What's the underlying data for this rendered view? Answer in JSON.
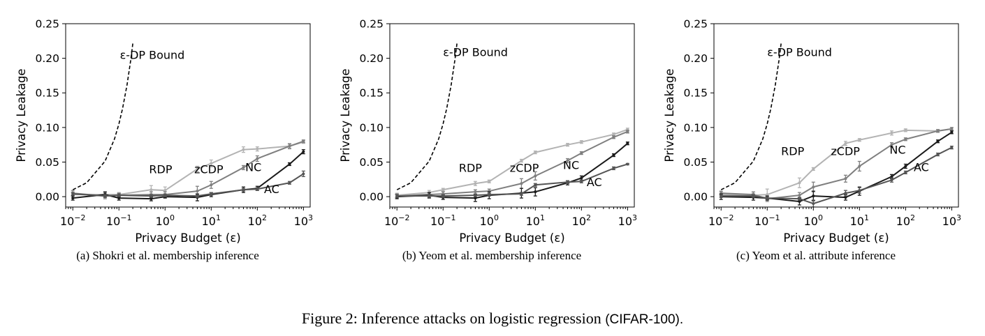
{
  "figure": {
    "caption_text": "Figure 2: Inference attacks on logistic regression ",
    "caption_dataset": "(CIFAR-100)."
  },
  "style": {
    "series_colors": {
      "RDP": "#b3b3b3",
      "zCDP": "#7f7f7f",
      "NC": "#1a1a1a",
      "AC": "#555555",
      "bound": "#000000"
    }
  },
  "chart_data": [
    {
      "type": "line",
      "caption": "(a)  Shokri et al. membership inference",
      "xlabel": "Privacy Budget (ε)",
      "ylabel": "Privacy Leakage",
      "xscale": "log",
      "xlim": [
        0.007,
        1400
      ],
      "ylim": [
        -0.015,
        0.25
      ],
      "xticks": [
        0.01,
        0.1,
        1,
        10,
        100,
        1000
      ],
      "xtick_labels": [
        "10⁻²",
        "10⁻¹",
        "10⁰",
        "10¹",
        "10²",
        "10³"
      ],
      "yticks": [
        0.0,
        0.05,
        0.1,
        0.15,
        0.2,
        0.25
      ],
      "ytick_labels": [
        "0.00",
        "0.05",
        "0.10",
        "0.15",
        "0.20",
        "0.25"
      ],
      "x": [
        0.01,
        0.05,
        0.1,
        0.5,
        1,
        5,
        10,
        50,
        100,
        500,
        1000
      ],
      "bound_label": "ε-DP Bound",
      "bound_label_pos": {
        "x": 0.105,
        "y": 0.199
      },
      "bound": {
        "x": [
          0.01,
          0.02,
          0.05,
          0.08,
          0.1,
          0.12,
          0.15,
          0.18,
          0.2
        ],
        "y": [
          0.01,
          0.0201,
          0.0513,
          0.0833,
          0.1052,
          0.1275,
          0.1618,
          0.1972,
          0.2214
        ]
      },
      "series": [
        {
          "name": "RDP",
          "values": [
            0.003,
            0.003,
            0.003,
            0.01,
            0.009,
            0.04,
            0.048,
            0.068,
            0.069,
            0.073,
            0.079
          ],
          "errors": [
            0.004,
            0.003,
            0.003,
            0.006,
            0.005,
            0.004,
            0.005,
            0.004,
            0.003,
            0.004,
            0.002
          ],
          "label_pos": {
            "x": 0.45,
            "y": 0.034
          }
        },
        {
          "name": "zCDP",
          "values": [
            0.005,
            0.001,
            0.002,
            0.003,
            0.003,
            0.008,
            0.017,
            0.042,
            0.055,
            0.073,
            0.08
          ],
          "errors": [
            0.004,
            0.004,
            0.003,
            0.004,
            0.004,
            0.007,
            0.005,
            0.003,
            0.004,
            0.003,
            0.002
          ],
          "label_pos": {
            "x": 4.3,
            "y": 0.034
          }
        },
        {
          "name": "NC",
          "values": [
            -0.002,
            0.003,
            -0.002,
            -0.003,
            0.0,
            -0.001,
            0.003,
            0.01,
            0.012,
            0.047,
            0.065
          ],
          "errors": [
            0.003,
            0.004,
            0.003,
            0.003,
            0.002,
            0.005,
            0.003,
            0.004,
            0.003,
            0.002,
            0.003
          ],
          "label_pos": {
            "x": 55,
            "y": 0.037
          }
        },
        {
          "name": "AC",
          "values": [
            0.004,
            0.001,
            0.002,
            0.001,
            0.002,
            0.001,
            0.004,
            0.01,
            0.011,
            0.02,
            0.033
          ],
          "errors": [
            0.002,
            0.002,
            0.002,
            0.002,
            0.002,
            0.002,
            0.002,
            0.002,
            0.002,
            0.002,
            0.004
          ],
          "label_pos": {
            "x": 140,
            "y": 0.005
          }
        }
      ]
    },
    {
      "type": "line",
      "caption": "(b)  Yeom et al. membership inference",
      "xlabel": "Privacy Budget (ε)",
      "ylabel": "Privacy Leakage",
      "xscale": "log",
      "xlim": [
        0.007,
        1400
      ],
      "ylim": [
        -0.015,
        0.25
      ],
      "xticks": [
        0.01,
        0.1,
        1,
        10,
        100,
        1000
      ],
      "xtick_labels": [
        "10⁻²",
        "10⁻¹",
        "10⁰",
        "10¹",
        "10²",
        "10³"
      ],
      "yticks": [
        0.0,
        0.05,
        0.1,
        0.15,
        0.2,
        0.25
      ],
      "ytick_labels": [
        "0.00",
        "0.05",
        "0.10",
        "0.15",
        "0.20",
        "0.25"
      ],
      "x": [
        0.01,
        0.05,
        0.1,
        0.5,
        1,
        5,
        10,
        50,
        100,
        500,
        1000
      ],
      "bound_label": "ε-DP Bound",
      "bound_label_pos": {
        "x": 0.1,
        "y": 0.203
      },
      "bound": {
        "x": [
          0.01,
          0.02,
          0.05,
          0.08,
          0.1,
          0.12,
          0.15,
          0.18,
          0.2
        ],
        "y": [
          0.01,
          0.0201,
          0.0513,
          0.0833,
          0.1052,
          0.1275,
          0.1618,
          0.1972,
          0.2214
        ]
      },
      "series": [
        {
          "name": "RDP",
          "values": [
            0.002,
            0.006,
            0.01,
            0.019,
            0.022,
            0.052,
            0.064,
            0.075,
            0.079,
            0.09,
            0.097
          ],
          "errors": [
            0.003,
            0.003,
            0.002,
            0.003,
            0.002,
            0.002,
            0.002,
            0.002,
            0.002,
            0.002,
            0.002
          ],
          "label_pos": {
            "x": 0.22,
            "y": 0.036
          }
        },
        {
          "name": "zCDP",
          "values": [
            0.001,
            0.003,
            0.004,
            0.007,
            0.008,
            0.019,
            0.03,
            0.052,
            0.063,
            0.086,
            0.094
          ],
          "errors": [
            0.003,
            0.002,
            0.003,
            0.003,
            0.003,
            0.007,
            0.006,
            0.003,
            0.002,
            0.002,
            0.002
          ],
          "label_pos": {
            "x": 2.8,
            "y": 0.036
          }
        },
        {
          "name": "NC",
          "values": [
            0.0,
            0.002,
            -0.001,
            -0.002,
            0.002,
            0.005,
            0.007,
            0.02,
            0.027,
            0.06,
            0.077
          ],
          "errors": [
            0.003,
            0.004,
            0.003,
            0.005,
            0.005,
            0.007,
            0.006,
            0.003,
            0.003,
            0.002,
            0.002
          ],
          "label_pos": {
            "x": 40,
            "y": 0.04
          }
        },
        {
          "name": "AC",
          "values": [
            0.001,
            0.001,
            0.001,
            0.002,
            0.003,
            0.004,
            0.017,
            0.021,
            0.022,
            0.041,
            0.047
          ],
          "errors": [
            0.002,
            0.002,
            0.002,
            0.002,
            0.002,
            0.002,
            0.002,
            0.002,
            0.002,
            0.002,
            0.001
          ],
          "label_pos": {
            "x": 130,
            "y": 0.015
          }
        }
      ]
    },
    {
      "type": "line",
      "caption": "(c)  Yeom et al. attribute inference",
      "xlabel": "Privacy Budget (ε)",
      "ylabel": "Privacy Leakage",
      "xscale": "log",
      "xlim": [
        0.007,
        1400
      ],
      "ylim": [
        -0.015,
        0.25
      ],
      "xticks": [
        0.01,
        0.1,
        1,
        10,
        100,
        1000
      ],
      "xtick_labels": [
        "10⁻²",
        "10⁻¹",
        "10⁰",
        "10¹",
        "10²",
        "10³"
      ],
      "yticks": [
        0.0,
        0.05,
        0.1,
        0.15,
        0.2,
        0.25
      ],
      "ytick_labels": [
        "0.00",
        "0.05",
        "0.10",
        "0.15",
        "0.20",
        "0.25"
      ],
      "x": [
        0.01,
        0.05,
        0.1,
        0.5,
        1,
        5,
        10,
        50,
        100,
        500,
        1000
      ],
      "bound_label": "ε-DP Bound",
      "bound_label_pos": {
        "x": 0.1,
        "y": 0.203
      },
      "bound": {
        "x": [
          0.01,
          0.02,
          0.05,
          0.08,
          0.1,
          0.12,
          0.15,
          0.18,
          0.2
        ],
        "y": [
          0.01,
          0.0201,
          0.0513,
          0.0833,
          0.1052,
          0.1275,
          0.1618,
          0.1972,
          0.2214
        ]
      },
      "series": [
        {
          "name": "RDP",
          "values": [
            0.003,
            0.002,
            0.003,
            0.02,
            0.04,
            0.077,
            0.082,
            0.092,
            0.096,
            0.095,
            0.098
          ],
          "errors": [
            0.004,
            0.003,
            0.008,
            0.007,
            0.002,
            0.003,
            0.002,
            0.003,
            0.002,
            0.002,
            0.002
          ],
          "label_pos": {
            "x": 0.2,
            "y": 0.06
          }
        },
        {
          "name": "zCDP",
          "values": [
            0.005,
            0.003,
            -0.003,
            0.002,
            0.014,
            0.026,
            0.044,
            0.075,
            0.083,
            0.095,
            0.098
          ],
          "errors": [
            0.003,
            0.004,
            0.004,
            0.004,
            0.007,
            0.005,
            0.007,
            0.003,
            0.002,
            0.002,
            0.002
          ],
          "label_pos": {
            "x": 2.4,
            "y": 0.06
          }
        },
        {
          "name": "NC",
          "values": [
            0.0,
            -0.001,
            -0.002,
            -0.007,
            0.001,
            -0.001,
            0.008,
            0.029,
            0.044,
            0.08,
            0.093
          ],
          "errors": [
            0.004,
            0.004,
            0.003,
            0.005,
            0.007,
            0.004,
            0.006,
            0.003,
            0.003,
            0.002,
            0.002
          ],
          "label_pos": {
            "x": 45,
            "y": 0.062
          }
        },
        {
          "name": "AC",
          "values": [
            0.001,
            0.001,
            -0.002,
            -0.003,
            -0.01,
            0.005,
            0.009,
            0.024,
            0.035,
            0.061,
            0.071
          ],
          "errors": [
            0.002,
            0.002,
            0.002,
            0.002,
            0.005,
            0.004,
            0.004,
            0.003,
            0.002,
            0.002,
            0.002
          ],
          "label_pos": {
            "x": 150,
            "y": 0.037
          }
        }
      ]
    }
  ]
}
